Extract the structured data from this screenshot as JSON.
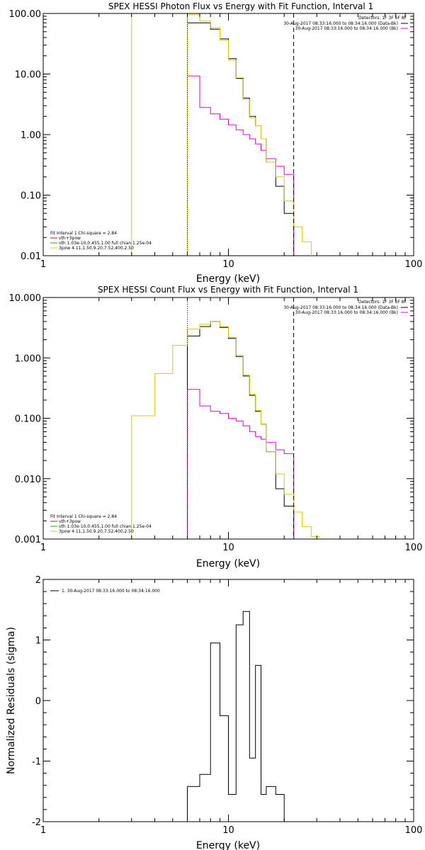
{
  "chart_data": [
    {
      "type": "line",
      "title": "SPEX HESSI Photon Flux vs Energy with Fit Function, Interval 1",
      "xlabel": "Energy (keV)",
      "ylabel": "",
      "xscale": "log",
      "yscale": "log",
      "xlim": [
        1,
        100
      ],
      "ylim": [
        0.01,
        100
      ],
      "x_ticks": [
        "1",
        "10",
        "100"
      ],
      "y_ticks": [
        "0.01",
        "0.10",
        "1.00",
        "10.00",
        "100.00"
      ],
      "legend_top": {
        "position": "top-right",
        "header": "Detectors: 1F 3F 6F 8F",
        "entries": [
          {
            "text": "30-Aug-2017 08:33:16.000 to 08:34:16.000 (Data-Bk)",
            "color": "#000000"
          },
          {
            "text": "30-Aug-2017 08:33:16.000 to 08:34:16.000 (Bk)",
            "color": "#dd00dd"
          }
        ]
      },
      "legend_fit": {
        "position": "bottom-left",
        "header": "Fit Interval 1   Chi-square = 2.84",
        "entries": [
          {
            "text": "vth+3pow",
            "color": "#dd0000"
          },
          {
            "text": "vth 1.03e-10,0.455,1.00  full chian 1.25e-04",
            "color": "#00bb00"
          },
          {
            "text": "3pow 4.11,1.50,9.20,7.52,400,2.50",
            "color": "#e0c800"
          }
        ]
      },
      "vlines": [
        {
          "x": 3.0,
          "style": "solid",
          "color": "#e0c800"
        },
        {
          "x": 6.0,
          "style": "dotted",
          "color": "#000000"
        },
        {
          "x": 22.5,
          "style": "dashed",
          "color": "#000000"
        }
      ],
      "series": [
        {
          "color": "#000000",
          "edges": [
            6,
            7,
            8,
            9,
            10,
            11,
            12,
            13,
            14,
            15,
            16,
            18,
            20,
            22.5
          ],
          "values": [
            70,
            70,
            55,
            38,
            18,
            8.5,
            4,
            2,
            1.4,
            0.85,
            0.35,
            0.14,
            0.05
          ]
        },
        {
          "color": "#dd00dd",
          "edges": [
            6,
            7,
            8,
            9,
            10,
            11,
            12,
            13,
            14,
            15,
            16,
            18,
            20,
            22.5
          ],
          "values": [
            9.3,
            2.8,
            2.2,
            1.8,
            1.45,
            1.2,
            1.0,
            0.85,
            0.7,
            0.55,
            0.4,
            0.3,
            0.22
          ]
        },
        {
          "color": "#e0c800",
          "edges": [
            6,
            7,
            8,
            9,
            10,
            11,
            12,
            13,
            14,
            15,
            16,
            18,
            20,
            22.5,
            25,
            28
          ],
          "values": [
            95,
            75,
            58,
            36,
            17,
            8.3,
            3.8,
            1.9,
            1.4,
            0.85,
            0.35,
            0.2,
            0.08,
            0.03,
            0.017
          ]
        }
      ]
    },
    {
      "type": "line",
      "title": "SPEX HESSI Count Flux vs Energy with Fit Function, Interval 1",
      "xlabel": "Energy (keV)",
      "ylabel": "",
      "xscale": "log",
      "yscale": "log",
      "xlim": [
        1,
        100
      ],
      "ylim": [
        0.001,
        10
      ],
      "x_ticks": [
        "1",
        "10",
        "100"
      ],
      "y_ticks": [
        "0.001",
        "0.010",
        "0.100",
        "1.000",
        "10.000"
      ],
      "legend_top": {
        "position": "top-right",
        "header": "Detectors: 1F 3F 6F 8F",
        "entries": [
          {
            "text": "30-Aug-2017 08:33:16.000 to 08:34:16.000 (Data-Bk)",
            "color": "#000000"
          },
          {
            "text": "30-Aug-2017 08:33:16.000 to 08:34:16.000 (Bk)",
            "color": "#dd00dd"
          }
        ]
      },
      "legend_fit": {
        "position": "bottom-left",
        "header": "Fit Interval 1   Chi-square = 2.84",
        "entries": [
          {
            "text": "vth+3pow",
            "color": "#dd0000"
          },
          {
            "text": "vth 1.03e-10,0.455,1.00  full chian 1.25e-04",
            "color": "#00bb00"
          },
          {
            "text": "3pow 4.11,1.50,9.20,7.52,400,2.50",
            "color": "#e0c800"
          }
        ]
      },
      "vlines": [
        {
          "x": 6.0,
          "style": "dotted",
          "color": "#000000"
        },
        {
          "x": 22.5,
          "style": "dashed",
          "color": "#000000"
        }
      ],
      "series": [
        {
          "color": "#000000",
          "edges": [
            6,
            7,
            8,
            9,
            10,
            11,
            12,
            13,
            14,
            15,
            16,
            18,
            20,
            22.5
          ],
          "values": [
            2.3,
            3.3,
            4.0,
            3.2,
            2.1,
            1.05,
            0.5,
            0.24,
            0.13,
            0.08,
            0.028,
            0.0068,
            0.0035
          ]
        },
        {
          "color": "#dd00dd",
          "edges": [
            6,
            7,
            8,
            9,
            10,
            11,
            12,
            13,
            14,
            15,
            16,
            18,
            20,
            22.5
          ],
          "values": [
            0.3,
            0.16,
            0.13,
            0.12,
            0.1,
            0.09,
            0.075,
            0.06,
            0.05,
            0.045,
            0.04,
            0.03,
            0.026
          ]
        },
        {
          "color": "#e0c800",
          "edges": [
            3,
            4,
            5,
            6,
            7,
            8,
            9,
            10,
            11,
            12,
            13,
            14,
            15,
            16,
            18,
            20,
            22.5,
            25,
            28,
            31
          ],
          "values": [
            0.11,
            0.55,
            1.6,
            3.0,
            3.6,
            4.0,
            3.3,
            2.2,
            1.1,
            0.52,
            0.25,
            0.135,
            0.08,
            0.028,
            0.012,
            0.0055,
            0.0028,
            0.0016,
            0.0011
          ]
        }
      ]
    },
    {
      "type": "line",
      "title": "",
      "xlabel": "Energy (keV)",
      "ylabel": "Normalized Residuals (sigma)",
      "xscale": "log",
      "yscale": "linear",
      "xlim": [
        1,
        100
      ],
      "ylim": [
        -2,
        2
      ],
      "x_ticks": [
        "1",
        "10",
        "100"
      ],
      "y_ticks": [
        "-2",
        "-1",
        "0",
        "1",
        "2"
      ],
      "legend_top": {
        "position": "top-left",
        "entries": [
          {
            "text": "1. 30-Aug-2017 08:33:16.000 to 08:34:16.000",
            "color": "#000000"
          }
        ]
      },
      "series": [
        {
          "color": "#000000",
          "edges": [
            6,
            7,
            8,
            9,
            10,
            11,
            12,
            13,
            14,
            15,
            16,
            18,
            20,
            22.5
          ],
          "values": [
            -1.42,
            -1.22,
            0.95,
            -0.25,
            -1.55,
            1.25,
            1.47,
            -0.95,
            0.58,
            -1.55,
            -1.42,
            -1.55,
            -2.0
          ]
        }
      ]
    }
  ]
}
